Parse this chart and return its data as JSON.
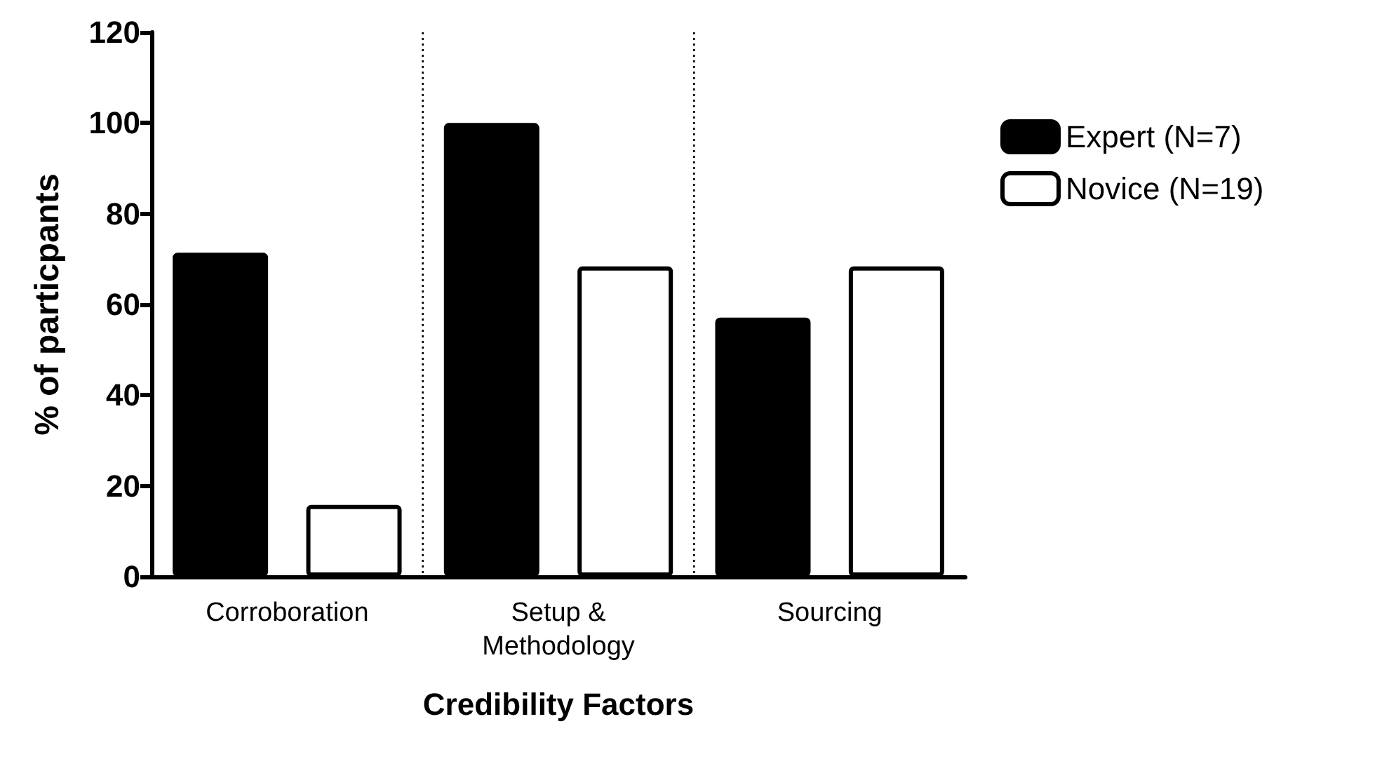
{
  "chart_data": {
    "type": "bar",
    "xlabel": "Credibility Factors",
    "ylabel": "% of particpants",
    "categories": [
      "Corroboration",
      "Setup &\nMethodology",
      "Sourcing"
    ],
    "series": [
      {
        "name": "Expert (N=7)",
        "color": "#000000",
        "values": [
          71.4,
          100,
          57.1
        ]
      },
      {
        "name": "Novice (N=19)",
        "color": "#ffffff",
        "values": [
          15.8,
          68.4,
          68.4
        ]
      }
    ],
    "ylim": [
      0,
      120
    ],
    "yticks": [
      0,
      20,
      40,
      60,
      80,
      100,
      120
    ],
    "grid": false,
    "legend": "top right"
  }
}
